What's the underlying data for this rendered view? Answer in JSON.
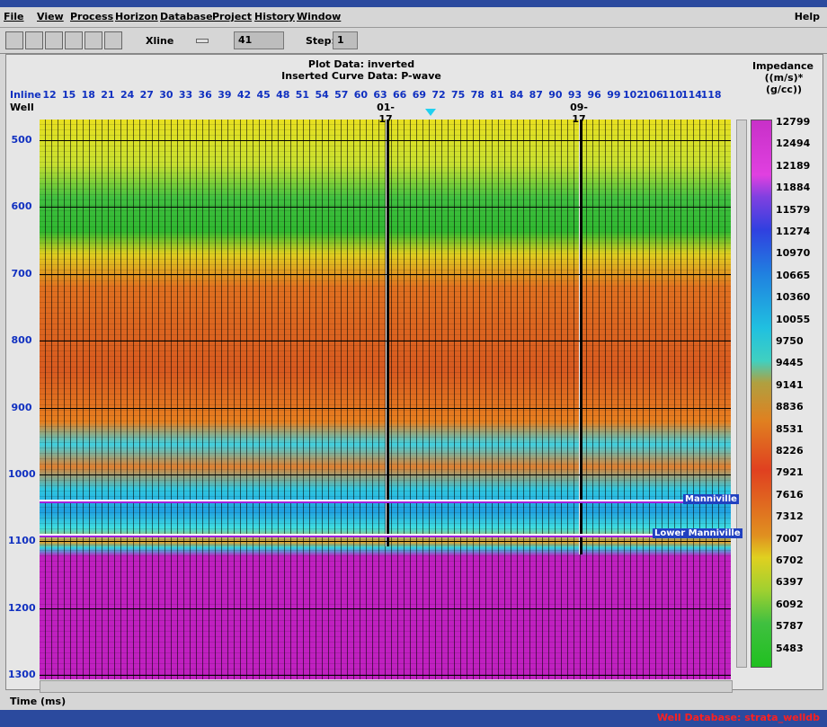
{
  "menu": [
    "File",
    "View",
    "Process",
    "Horizon",
    "Database",
    "Project",
    "History",
    "Window"
  ],
  "help": "Help",
  "toolbar": {
    "xline_label": "Xline",
    "xline_value": "41",
    "step_label": "Step:",
    "step_value": "1"
  },
  "plot": {
    "title": "Plot Data: inverted",
    "subtitle": "Inserted Curve Data:  P-wave",
    "inline_label": "Inline",
    "well_label": "Well",
    "inlines": [
      12,
      15,
      18,
      21,
      24,
      27,
      30,
      33,
      36,
      39,
      42,
      45,
      48,
      51,
      54,
      57,
      60,
      63,
      66,
      69,
      72,
      75,
      78,
      81,
      84,
      87,
      90,
      93,
      96,
      99,
      102,
      106,
      110,
      114,
      118
    ],
    "wells": [
      "01-17",
      "09-17"
    ],
    "time_ticks": [
      500,
      600,
      700,
      800,
      900,
      1000,
      1100,
      1200,
      1300
    ],
    "horizons": [
      "Manniville",
      "Lower Manniville"
    ],
    "time_label": "Time (ms)"
  },
  "colorbar": {
    "title": "Impedance",
    "units": "((m/s)*(g/cc))",
    "labels": [
      12799,
      12494,
      12189,
      11884,
      11579,
      11274,
      10970,
      10665,
      10360,
      10055,
      9750,
      9445,
      9141,
      8836,
      8531,
      8226,
      7921,
      7616,
      7312,
      7007,
      6702,
      6397,
      6092,
      5787,
      5483
    ]
  },
  "status": "Well Database: strata_welldb"
}
